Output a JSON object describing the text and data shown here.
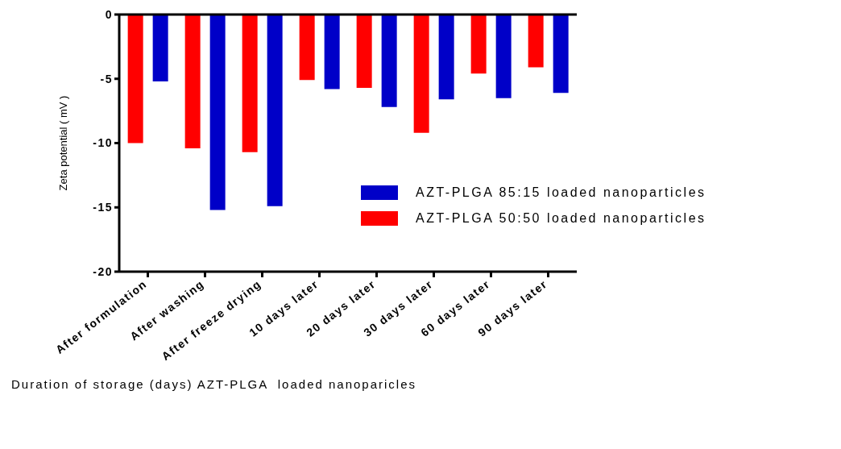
{
  "chart_data": {
    "type": "bar",
    "xlabel": "Duration of storage (days) AZT-PLGA  loaded nanoparicles",
    "ylabel": "Zeta potential ( mV )",
    "categories": [
      "After formulation",
      "After washing",
      "After freeze drying",
      "10 days later",
      "20 days later",
      "30 days later",
      "60 days later",
      "90 days later"
    ],
    "series": [
      {
        "name": "AZT-PLGA 50:50 loaded nanoparticles",
        "color": "#ff0000",
        "values": [
          -10.0,
          -10.4,
          -10.7,
          -5.1,
          -5.7,
          -9.2,
          -4.6,
          -4.1
        ]
      },
      {
        "name": "AZT-PLGA 85:15 loaded nanoparticles",
        "color": "#0000c8",
        "values": [
          -5.2,
          -15.2,
          -14.9,
          -5.8,
          -7.2,
          -6.6,
          -6.5,
          -6.1
        ]
      }
    ],
    "ylim": [
      -20,
      0
    ],
    "yticks": [
      -20,
      -15,
      -10,
      -5,
      0
    ],
    "grid": false,
    "legend": "right"
  }
}
